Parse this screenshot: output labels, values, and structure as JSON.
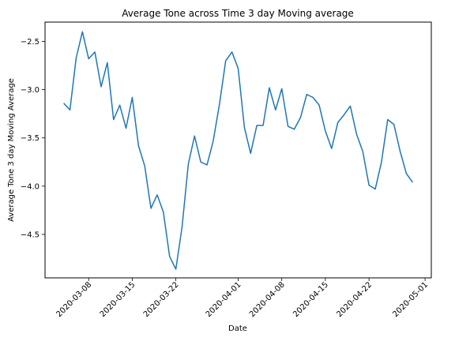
{
  "chart_data": {
    "type": "line",
    "title": "Average Tone across Time 3 day Moving average",
    "xlabel": "Date",
    "ylabel": "Average Tone 3 day Moving Average",
    "xlim": [
      "2020-03-01",
      "2020-05-02"
    ],
    "ylim": [
      -4.95,
      -2.3
    ],
    "x_ticks": [
      "2020-03-08",
      "2020-03-15",
      "2020-03-22",
      "2020-04-01",
      "2020-04-08",
      "2020-04-15",
      "2020-04-22",
      "2020-05-01"
    ],
    "y_ticks": [
      -2.5,
      -3.0,
      -3.5,
      -4.0,
      -4.5
    ],
    "grid": false,
    "legend": "none",
    "series": [
      {
        "color": "#1f77b4",
        "x": [
          "2020-03-04",
          "2020-03-05",
          "2020-03-06",
          "2020-03-07",
          "2020-03-08",
          "2020-03-09",
          "2020-03-10",
          "2020-03-11",
          "2020-03-12",
          "2020-03-13",
          "2020-03-14",
          "2020-03-15",
          "2020-03-16",
          "2020-03-17",
          "2020-03-18",
          "2020-03-19",
          "2020-03-20",
          "2020-03-21",
          "2020-03-22",
          "2020-03-23",
          "2020-03-24",
          "2020-03-25",
          "2020-03-26",
          "2020-03-27",
          "2020-03-28",
          "2020-03-29",
          "2020-03-30",
          "2020-03-31",
          "2020-04-01",
          "2020-04-02",
          "2020-04-03",
          "2020-04-04",
          "2020-04-05",
          "2020-04-06",
          "2020-04-07",
          "2020-04-08",
          "2020-04-09",
          "2020-04-10",
          "2020-04-11",
          "2020-04-12",
          "2020-04-13",
          "2020-04-14",
          "2020-04-15",
          "2020-04-16",
          "2020-04-17",
          "2020-04-18",
          "2020-04-19",
          "2020-04-20",
          "2020-04-21",
          "2020-04-22",
          "2020-04-23",
          "2020-04-24",
          "2020-04-25",
          "2020-04-26",
          "2020-04-27",
          "2020-04-28",
          "2020-04-29"
        ],
        "values": [
          -3.14,
          -3.21,
          -2.67,
          -2.4,
          -2.68,
          -2.61,
          -2.97,
          -2.72,
          -3.31,
          -3.16,
          -3.4,
          -3.08,
          -3.58,
          -3.79,
          -4.23,
          -4.09,
          -4.27,
          -4.73,
          -4.86,
          -4.42,
          -3.77,
          -3.48,
          -3.75,
          -3.78,
          -3.53,
          -3.15,
          -2.7,
          -2.61,
          -2.78,
          -3.39,
          -3.66,
          -3.37,
          -3.37,
          -2.98,
          -3.21,
          -2.99,
          -3.38,
          -3.41,
          -3.29,
          -3.05,
          -3.08,
          -3.16,
          -3.43,
          -3.61,
          -3.34,
          -3.26,
          -3.17,
          -3.46,
          -3.64,
          -3.99,
          -4.03,
          -3.75,
          -3.31,
          -3.36,
          -3.64,
          -3.87,
          -3.96
        ]
      }
    ]
  }
}
